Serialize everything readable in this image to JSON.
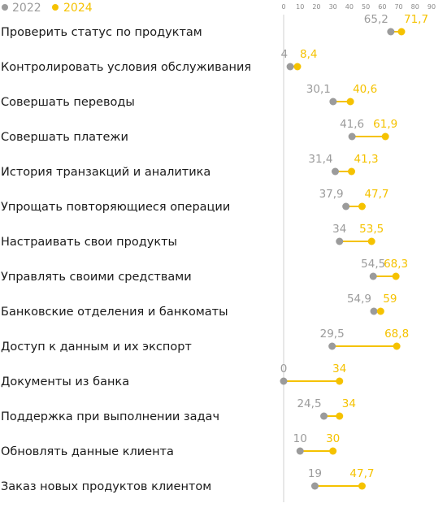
{
  "colors": {
    "y2022": "#9b9b9b",
    "y2024": "#f5c200",
    "axis": "#d0d0d0",
    "text": "#1a1a1a"
  },
  "legend": [
    {
      "label": "2022",
      "color": "#9b9b9b"
    },
    {
      "label": "2024",
      "color": "#f5c200"
    }
  ],
  "chart_data": {
    "type": "scatter",
    "xlim": [
      0,
      90
    ],
    "ticks": [
      "0",
      "10",
      "20",
      "30",
      "40",
      "50",
      "60",
      "70",
      "80",
      "90"
    ],
    "series": [
      {
        "name": "2022"
      },
      {
        "name": "2024"
      }
    ],
    "rows": [
      {
        "label": "Проверить статус по продуктам",
        "v2022": 65.2,
        "v2024": 71.7,
        "t2022": "65,2",
        "t2024": "71,7"
      },
      {
        "label": "Контролировать условия обслуживания",
        "v2022": 4,
        "v2024": 8.4,
        "t2022": "4",
        "t2024": "8,4"
      },
      {
        "label": "Совершать переводы",
        "v2022": 30.1,
        "v2024": 40.6,
        "t2022": "30,1",
        "t2024": "40,6"
      },
      {
        "label": "Совершать платежи",
        "v2022": 41.6,
        "v2024": 61.9,
        "t2022": "41,6",
        "t2024": "61,9"
      },
      {
        "label": "История транзакций и аналитика",
        "v2022": 31.4,
        "v2024": 41.3,
        "t2022": "31,4",
        "t2024": "41,3"
      },
      {
        "label": "Упрощать повторяющиеся операции",
        "v2022": 37.9,
        "v2024": 47.7,
        "t2022": "37,9",
        "t2024": "47,7"
      },
      {
        "label": "Настраивать свои продукты",
        "v2022": 34,
        "v2024": 53.5,
        "t2022": "34",
        "t2024": "53,5"
      },
      {
        "label": "Управлять своими средствами",
        "v2022": 54.5,
        "v2024": 68.3,
        "t2022": "54,5",
        "t2024": "68,3"
      },
      {
        "label": "Банковские отделения и банкоматы",
        "v2022": 54.9,
        "v2024": 59,
        "t2022": "54,9",
        "t2024": "59"
      },
      {
        "label": "Доступ к данным и их экспорт",
        "v2022": 29.5,
        "v2024": 68.8,
        "t2022": "29,5",
        "t2024": "68,8"
      },
      {
        "label": "Документы из банка",
        "v2022": 0,
        "v2024": 34,
        "t2022": "0",
        "t2024": "34"
      },
      {
        "label": "Поддержка при выполнении задач",
        "v2022": 24.5,
        "v2024": 34,
        "t2022": "24,5",
        "t2024": "34"
      },
      {
        "label": "Обновлять данные клиента",
        "v2022": 10,
        "v2024": 30,
        "t2022": "10",
        "t2024": "30"
      },
      {
        "label": "Заказ новых продуктов клиентом",
        "v2022": 19,
        "v2024": 47.7,
        "t2022": "19",
        "t2024": "47,7"
      }
    ]
  }
}
